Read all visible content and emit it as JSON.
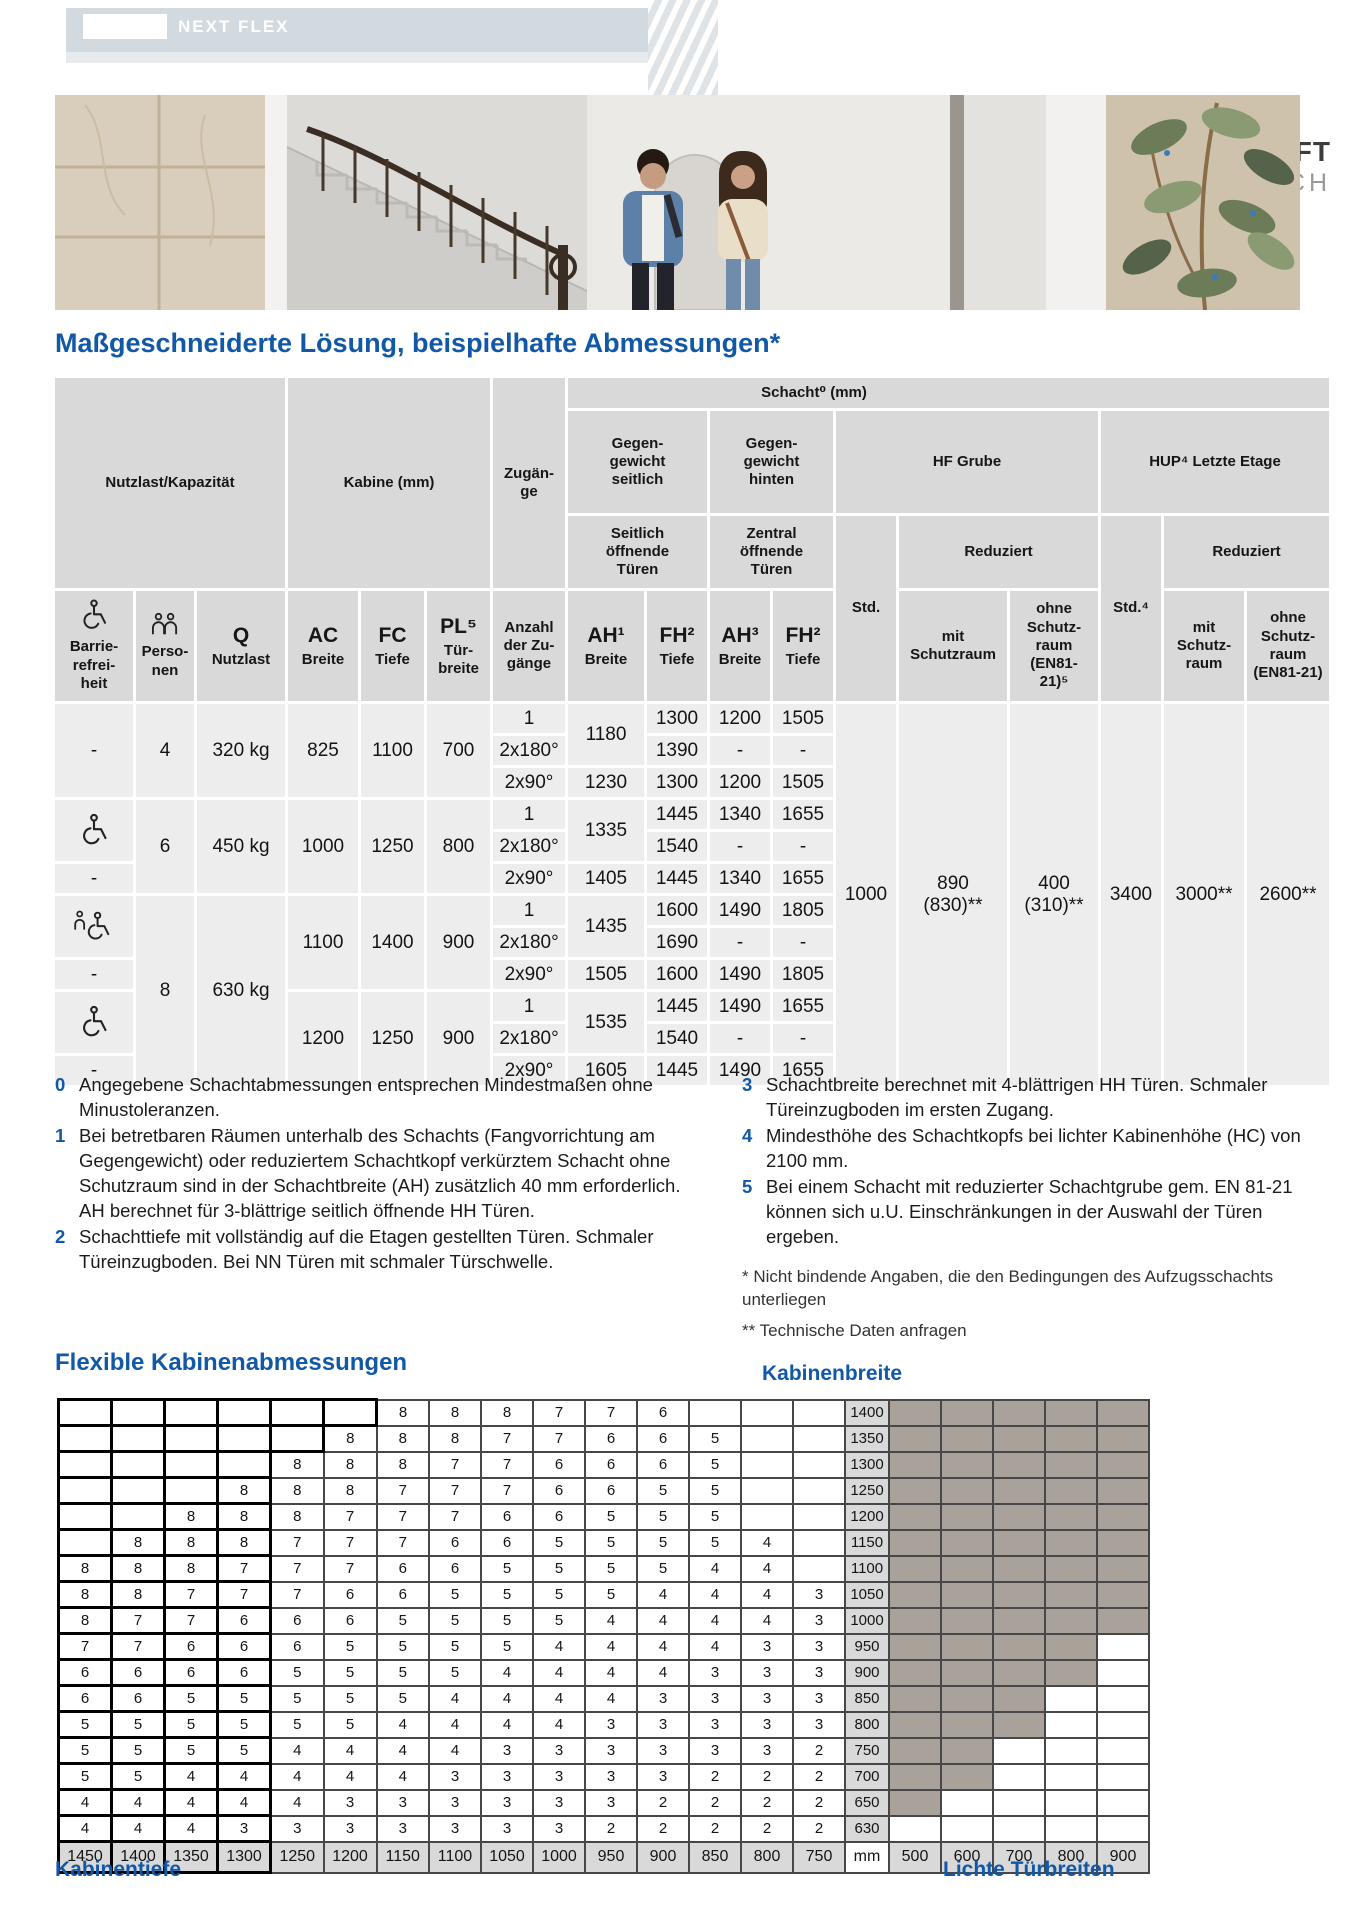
{
  "brand": {
    "logo_text": "NEXT FLEX",
    "product": "STANDARDLIFT",
    "company": "EMCH"
  },
  "title": "Maßgeschneiderte Lösung, beispielhafte Abmessungen*",
  "main_table": {
    "h1": {
      "nutzlast": "Nutzlast/Kapazität",
      "kabine": "Kabine (mm)",
      "zugaenge": "Zugän-\nge",
      "schacht": "Schacht⁰ (mm)"
    },
    "h2": {
      "gg_seitlich": "Gegen-\ngewicht\nseitlich",
      "gg_hinten": "Gegen-\ngewicht\nhinten",
      "hf_grube": "HF Grube",
      "hup": "HUP⁴ Letzte Etage"
    },
    "h3": {
      "seitlich": "Seitlich\nöffnende\nTüren",
      "zentral": "Zentral\nöffnende\nTüren",
      "std": "Std.",
      "reduziert_hf": "Reduziert",
      "std4": "Std.⁴",
      "reduziert_hup": "Reduziert"
    },
    "h4": {
      "barriere": "Barrie-\nrefrei-\nheit",
      "personen": "Perso-\nnen",
      "q_big": "Q",
      "q_small": "Nutzlast",
      "ac_big": "AC",
      "ac_small": "Breite",
      "fc_big": "FC",
      "fc_small": "Tiefe",
      "pl_big": "PL⁵",
      "pl_small": "Tür-\nbreite",
      "anzahl": "Anzahl\nder Zu-\ngänge",
      "ah1_big": "AH¹",
      "ah1_small": "Breite",
      "fh2_big": "FH²",
      "fh2_small": "Tiefe",
      "ah3_big": "AH³",
      "ah3_small": "Breite",
      "fh2b_big": "FH²",
      "fh2b_small": "Tiefe",
      "mit_hf": "mit\nSchutzraum",
      "ohne_hf": "ohne\nSchutz-\nraum\n(EN81-\n21)⁵",
      "mit_hup": "mit\nSchutz-\nraum",
      "ohne_hup": "ohne\nSchutz-\nraum\n(EN81-21)"
    },
    "body": {
      "a": {
        "barrier": "-",
        "persons": "4",
        "load": "320 kg",
        "ac": "825",
        "fc": "1100",
        "pl": "700",
        "r1": [
          "1",
          "1180",
          "1300",
          "1200",
          "1505"
        ],
        "r2": [
          "2x180°",
          "1390",
          "-",
          "-"
        ],
        "r3": [
          "2x90°",
          "1230",
          "1300",
          "1200",
          "1505"
        ]
      },
      "b": {
        "persons": "6",
        "load": "450 kg",
        "ac": "1000",
        "fc": "1250",
        "pl": "800",
        "barrier_bottom": "-",
        "r1": [
          "1",
          "1335",
          "1445",
          "1340",
          "1655"
        ],
        "r2": [
          "2x180°",
          "1540",
          "-",
          "-"
        ],
        "r3": [
          "2x90°",
          "1405",
          "1445",
          "1340",
          "1655"
        ]
      },
      "c": {
        "persons": "8",
        "load": "630 kg",
        "ac": "1100",
        "fc": "1400",
        "pl": "900",
        "barrier_bottom": "-",
        "r1": [
          "1",
          "1435",
          "1600",
          "1490",
          "1805"
        ],
        "r2": [
          "2x180°",
          "1690",
          "-",
          "-"
        ],
        "r3": [
          "2x90°",
          "1505",
          "1600",
          "1490",
          "1805"
        ]
      },
      "d": {
        "ac": "1200",
        "fc": "1250",
        "pl": "900",
        "barrier_bottom": "-",
        "r1": [
          "1",
          "1535",
          "1445",
          "1490",
          "1655"
        ],
        "r2": [
          "2x180°",
          "1540",
          "-",
          "-"
        ],
        "r3": [
          "2x90°",
          "1605",
          "1445",
          "1490",
          "1655"
        ]
      },
      "merged": [
        "1000",
        "890\n(830)**",
        "400\n(310)**",
        "3400",
        "3000**",
        "2600**"
      ]
    }
  },
  "footnotes": {
    "left": [
      {
        "n": "0",
        "text": "Angegebene Schachtabmessungen entsprechen Mindestmaßen ohne Minustoleranzen."
      },
      {
        "n": "1",
        "text": "Bei betretbaren Räumen unterhalb des Schachts (Fangvorrichtung am Gegengewicht) oder reduziertem Schachtkopf verkürztem Schacht ohne Schutzraum sind in der Schachtbreite (AH) zusätzlich 40 mm erforderlich. AH berechnet für 3-blättrige seitlich öffnende HH Türen."
      },
      {
        "n": "2",
        "text": "Schachttiefe mit vollständig auf die Etagen gestellten Türen. Schmaler Türeinzugboden. Bei NN Türen mit schmaler Türschwelle."
      }
    ],
    "right": [
      {
        "n": "3",
        "text": "Schachtbreite berechnet mit 4-blättrigen HH Türen. Schmaler Türeinzugboden im ersten Zugang."
      },
      {
        "n": "4",
        "text": "Mindesthöhe des Schachtkopfs bei lichter Kabinenhöhe (HC) von 2100 mm."
      },
      {
        "n": "5",
        "text": "Bei einem Schacht mit reduzierter Schachtgrube gem. EN 81-21 können sich u.U. Einschränkungen in der Auswahl der Türen ergeben."
      }
    ],
    "star": "* Nicht bindende Angaben, die den Bedingungen des Aufzugsschachts unterliegen",
    "star2": "** Technische Daten anfragen"
  },
  "sections": {
    "flexible": "Flexible Kabinenabmessungen",
    "kabinenbreite": "Kabinenbreite",
    "kabinentiefe": "Kabinentiefe",
    "tuerbreiten": "Lichte Türbreiten"
  },
  "matrix": {
    "unit": "mm",
    "tiefe_values": [
      "1450",
      "1400",
      "1350",
      "1300",
      "1250",
      "1200",
      "1150",
      "1100",
      "1050",
      "1000",
      "950",
      "900",
      "850",
      "800",
      "750"
    ],
    "breite_values": [
      "1400",
      "1350",
      "1300",
      "1250",
      "1200",
      "1150",
      "1100",
      "1050",
      "1000",
      "950",
      "900",
      "850",
      "800",
      "750",
      "700",
      "650",
      "630"
    ],
    "door_values": [
      "500",
      "600",
      "700",
      "800",
      "900"
    ],
    "cells": [
      [
        "",
        "",
        "",
        "",
        "",
        "",
        "8",
        "8",
        "8",
        "7",
        "7",
        "6",
        "",
        "",
        ""
      ],
      [
        "",
        "",
        "",
        "",
        "",
        "8",
        "8",
        "8",
        "7",
        "7",
        "6",
        "6",
        "5",
        "",
        ""
      ],
      [
        "",
        "",
        "",
        "",
        "8",
        "8",
        "8",
        "7",
        "7",
        "6",
        "6",
        "6",
        "5",
        "",
        ""
      ],
      [
        "",
        "",
        "",
        "8",
        "8",
        "8",
        "7",
        "7",
        "7",
        "6",
        "6",
        "5",
        "5",
        "",
        ""
      ],
      [
        "",
        "",
        "8",
        "8",
        "8",
        "7",
        "7",
        "7",
        "6",
        "6",
        "5",
        "5",
        "5",
        "",
        ""
      ],
      [
        "",
        "8",
        "8",
        "8",
        "7",
        "7",
        "7",
        "6",
        "6",
        "5",
        "5",
        "5",
        "5",
        "4",
        ""
      ],
      [
        "8",
        "8",
        "8",
        "7",
        "7",
        "7",
        "6",
        "6",
        "5",
        "5",
        "5",
        "5",
        "4",
        "4",
        ""
      ],
      [
        "8",
        "8",
        "7",
        "7",
        "7",
        "6",
        "6",
        "5",
        "5",
        "5",
        "5",
        "4",
        "4",
        "4",
        "3"
      ],
      [
        "8",
        "7",
        "7",
        "6",
        "6",
        "6",
        "5",
        "5",
        "5",
        "5",
        "4",
        "4",
        "4",
        "4",
        "3"
      ],
      [
        "7",
        "7",
        "6",
        "6",
        "6",
        "5",
        "5",
        "5",
        "5",
        "4",
        "4",
        "4",
        "4",
        "3",
        "3"
      ],
      [
        "6",
        "6",
        "6",
        "6",
        "5",
        "5",
        "5",
        "5",
        "4",
        "4",
        "4",
        "4",
        "3",
        "3",
        "3"
      ],
      [
        "6",
        "6",
        "5",
        "5",
        "5",
        "5",
        "5",
        "4",
        "4",
        "4",
        "4",
        "3",
        "3",
        "3",
        "3"
      ],
      [
        "5",
        "5",
        "5",
        "5",
        "5",
        "5",
        "4",
        "4",
        "4",
        "4",
        "3",
        "3",
        "3",
        "3",
        "3"
      ],
      [
        "5",
        "5",
        "5",
        "5",
        "4",
        "4",
        "4",
        "4",
        "3",
        "3",
        "3",
        "3",
        "3",
        "3",
        "2"
      ],
      [
        "5",
        "5",
        "4",
        "4",
        "4",
        "4",
        "4",
        "3",
        "3",
        "3",
        "3",
        "3",
        "2",
        "2",
        "2"
      ],
      [
        "4",
        "4",
        "4",
        "4",
        "4",
        "3",
        "3",
        "3",
        "3",
        "3",
        "3",
        "2",
        "2",
        "2",
        "2"
      ],
      [
        "4",
        "4",
        "4",
        "3",
        "3",
        "3",
        "3",
        "3",
        "3",
        "3",
        "2",
        "2",
        "2",
        "2",
        "2"
      ]
    ],
    "door_shaded_count": [
      5,
      5,
      5,
      5,
      5,
      5,
      5,
      5,
      5,
      4,
      4,
      3,
      3,
      2,
      2,
      1,
      0
    ]
  },
  "colors": {
    "accent_blue": "#1158a7",
    "header_gray": "#d9d9d9",
    "cell_gray": "#ededed",
    "step_gray": "#a9a29b",
    "band_gray": "#d2d9df"
  }
}
